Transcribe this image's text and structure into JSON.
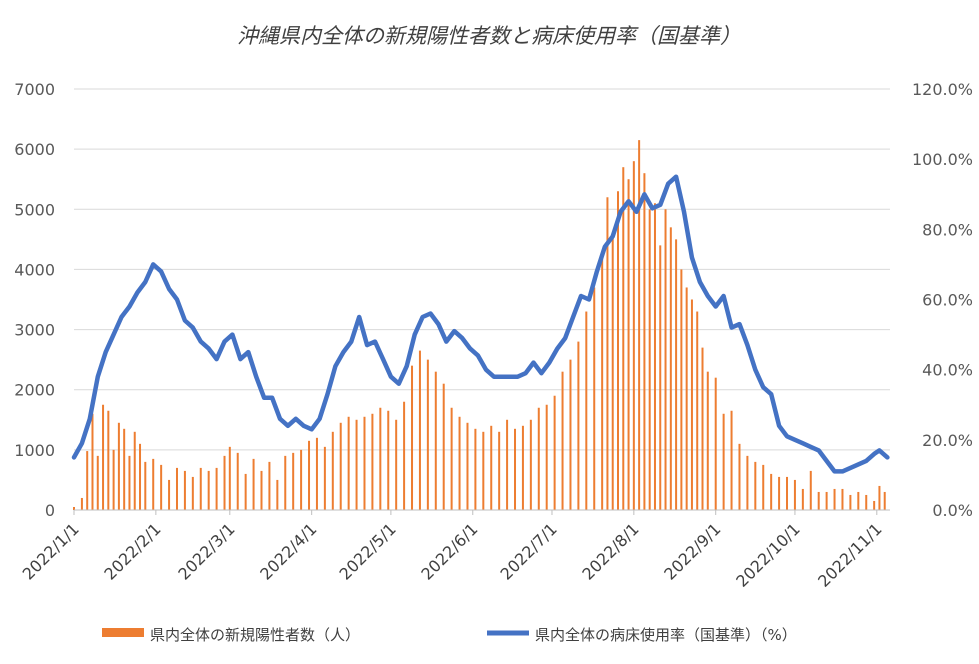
{
  "chart_data": {
    "type": "bar",
    "title": "沖縄県内全体の新規陽性者数と病床使用率（国基準）",
    "x_ticks": [
      "2022/1/1",
      "2022/2/1",
      "2022/3/1",
      "2022/4/1",
      "2022/5/1",
      "2022/6/1",
      "2022/7/1",
      "2022/8/1",
      "2022/9/1",
      "2022/10/1",
      "2022/11/1"
    ],
    "x_range": [
      "2022-01-01",
      "2022-11-06"
    ],
    "y_left_ticks": [
      "0",
      "1000",
      "2000",
      "3000",
      "4000",
      "5000",
      "6000",
      "7000"
    ],
    "y_left_range": [
      0,
      7000
    ],
    "y_right_ticks": [
      "0.0%",
      "20.0%",
      "40.0%",
      "60.0%",
      "80.0%",
      "100.0%",
      "120.0%"
    ],
    "y_right_range": [
      0,
      120
    ],
    "grid": "horizontal",
    "legend_position": "bottom",
    "series": [
      {
        "name": "県内全体の新規陽性者数（人）",
        "type": "bar",
        "axis": "left",
        "color": "#ed7d31",
        "points": [
          [
            "2022-01-01",
            50
          ],
          [
            "2022-01-04",
            200
          ],
          [
            "2022-01-06",
            980
          ],
          [
            "2022-01-08",
            1600
          ],
          [
            "2022-01-10",
            900
          ],
          [
            "2022-01-12",
            1750
          ],
          [
            "2022-01-14",
            1650
          ],
          [
            "2022-01-16",
            1000
          ],
          [
            "2022-01-18",
            1450
          ],
          [
            "2022-01-20",
            1350
          ],
          [
            "2022-01-22",
            900
          ],
          [
            "2022-01-24",
            1300
          ],
          [
            "2022-01-26",
            1100
          ],
          [
            "2022-01-28",
            800
          ],
          [
            "2022-01-31",
            850
          ],
          [
            "2022-02-03",
            750
          ],
          [
            "2022-02-06",
            500
          ],
          [
            "2022-02-09",
            700
          ],
          [
            "2022-02-12",
            650
          ],
          [
            "2022-02-15",
            550
          ],
          [
            "2022-02-18",
            700
          ],
          [
            "2022-02-21",
            650
          ],
          [
            "2022-02-24",
            700
          ],
          [
            "2022-02-27",
            900
          ],
          [
            "2022-03-01",
            1050
          ],
          [
            "2022-03-04",
            950
          ],
          [
            "2022-03-07",
            600
          ],
          [
            "2022-03-10",
            850
          ],
          [
            "2022-03-13",
            650
          ],
          [
            "2022-03-16",
            800
          ],
          [
            "2022-03-19",
            500
          ],
          [
            "2022-03-22",
            900
          ],
          [
            "2022-03-25",
            950
          ],
          [
            "2022-03-28",
            1000
          ],
          [
            "2022-03-31",
            1150
          ],
          [
            "2022-04-03",
            1200
          ],
          [
            "2022-04-06",
            1050
          ],
          [
            "2022-04-09",
            1300
          ],
          [
            "2022-04-12",
            1450
          ],
          [
            "2022-04-15",
            1550
          ],
          [
            "2022-04-18",
            1500
          ],
          [
            "2022-04-21",
            1550
          ],
          [
            "2022-04-24",
            1600
          ],
          [
            "2022-04-27",
            1700
          ],
          [
            "2022-04-30",
            1650
          ],
          [
            "2022-05-03",
            1500
          ],
          [
            "2022-05-06",
            1800
          ],
          [
            "2022-05-09",
            2400
          ],
          [
            "2022-05-12",
            2650
          ],
          [
            "2022-05-15",
            2500
          ],
          [
            "2022-05-18",
            2300
          ],
          [
            "2022-05-21",
            2100
          ],
          [
            "2022-05-24",
            1700
          ],
          [
            "2022-05-27",
            1550
          ],
          [
            "2022-05-30",
            1450
          ],
          [
            "2022-06-02",
            1350
          ],
          [
            "2022-06-05",
            1300
          ],
          [
            "2022-06-08",
            1400
          ],
          [
            "2022-06-11",
            1300
          ],
          [
            "2022-06-14",
            1500
          ],
          [
            "2022-06-17",
            1350
          ],
          [
            "2022-06-20",
            1400
          ],
          [
            "2022-06-23",
            1500
          ],
          [
            "2022-06-26",
            1700
          ],
          [
            "2022-06-29",
            1750
          ],
          [
            "2022-07-02",
            1900
          ],
          [
            "2022-07-05",
            2300
          ],
          [
            "2022-07-08",
            2500
          ],
          [
            "2022-07-11",
            2800
          ],
          [
            "2022-07-14",
            3300
          ],
          [
            "2022-07-17",
            3700
          ],
          [
            "2022-07-20",
            4300
          ],
          [
            "2022-07-22",
            5200
          ],
          [
            "2022-07-24",
            4600
          ],
          [
            "2022-07-26",
            5300
          ],
          [
            "2022-07-28",
            5700
          ],
          [
            "2022-07-30",
            5500
          ],
          [
            "2022-08-01",
            5800
          ],
          [
            "2022-08-03",
            6150
          ],
          [
            "2022-08-05",
            5600
          ],
          [
            "2022-08-07",
            5000
          ],
          [
            "2022-08-09",
            5100
          ],
          [
            "2022-08-11",
            4400
          ],
          [
            "2022-08-13",
            5000
          ],
          [
            "2022-08-15",
            4700
          ],
          [
            "2022-08-17",
            4500
          ],
          [
            "2022-08-19",
            4000
          ],
          [
            "2022-08-21",
            3700
          ],
          [
            "2022-08-23",
            3500
          ],
          [
            "2022-08-25",
            3300
          ],
          [
            "2022-08-27",
            2700
          ],
          [
            "2022-08-29",
            2300
          ],
          [
            "2022-09-01",
            2200
          ],
          [
            "2022-09-04",
            1600
          ],
          [
            "2022-09-07",
            1650
          ],
          [
            "2022-09-10",
            1100
          ],
          [
            "2022-09-13",
            900
          ],
          [
            "2022-09-16",
            800
          ],
          [
            "2022-09-19",
            750
          ],
          [
            "2022-09-22",
            600
          ],
          [
            "2022-09-25",
            550
          ],
          [
            "2022-09-28",
            550
          ],
          [
            "2022-10-01",
            500
          ],
          [
            "2022-10-04",
            350
          ],
          [
            "2022-10-07",
            650
          ],
          [
            "2022-10-10",
            300
          ],
          [
            "2022-10-13",
            300
          ],
          [
            "2022-10-16",
            350
          ],
          [
            "2022-10-19",
            350
          ],
          [
            "2022-10-22",
            250
          ],
          [
            "2022-10-25",
            300
          ],
          [
            "2022-10-28",
            250
          ],
          [
            "2022-10-31",
            150
          ],
          [
            "2022-11-02",
            400
          ],
          [
            "2022-11-04",
            300
          ]
        ]
      },
      {
        "name": "県内全体の病床使用率（国基準）（%）",
        "type": "line",
        "axis": "right",
        "color": "#4472c4",
        "points": [
          [
            "2022-01-01",
            15
          ],
          [
            "2022-01-04",
            19
          ],
          [
            "2022-01-07",
            26
          ],
          [
            "2022-01-10",
            38
          ],
          [
            "2022-01-13",
            45
          ],
          [
            "2022-01-16",
            50
          ],
          [
            "2022-01-19",
            55
          ],
          [
            "2022-01-22",
            58
          ],
          [
            "2022-01-25",
            62
          ],
          [
            "2022-01-28",
            65
          ],
          [
            "2022-01-31",
            70
          ],
          [
            "2022-02-03",
            68
          ],
          [
            "2022-02-06",
            63
          ],
          [
            "2022-02-09",
            60
          ],
          [
            "2022-02-12",
            54
          ],
          [
            "2022-02-15",
            52
          ],
          [
            "2022-02-18",
            48
          ],
          [
            "2022-02-21",
            46
          ],
          [
            "2022-02-24",
            43
          ],
          [
            "2022-02-27",
            48
          ],
          [
            "2022-03-02",
            50
          ],
          [
            "2022-03-05",
            43
          ],
          [
            "2022-03-08",
            45
          ],
          [
            "2022-03-11",
            38
          ],
          [
            "2022-03-14",
            32
          ],
          [
            "2022-03-17",
            32
          ],
          [
            "2022-03-20",
            26
          ],
          [
            "2022-03-23",
            24
          ],
          [
            "2022-03-26",
            26
          ],
          [
            "2022-03-29",
            24
          ],
          [
            "2022-04-01",
            23
          ],
          [
            "2022-04-04",
            26
          ],
          [
            "2022-04-07",
            33
          ],
          [
            "2022-04-10",
            41
          ],
          [
            "2022-04-13",
            45
          ],
          [
            "2022-04-16",
            48
          ],
          [
            "2022-04-19",
            55
          ],
          [
            "2022-04-22",
            47
          ],
          [
            "2022-04-25",
            48
          ],
          [
            "2022-04-28",
            43
          ],
          [
            "2022-05-01",
            38
          ],
          [
            "2022-05-04",
            36
          ],
          [
            "2022-05-07",
            41
          ],
          [
            "2022-05-10",
            50
          ],
          [
            "2022-05-13",
            55
          ],
          [
            "2022-05-16",
            56
          ],
          [
            "2022-05-19",
            53
          ],
          [
            "2022-05-22",
            48
          ],
          [
            "2022-05-25",
            51
          ],
          [
            "2022-05-28",
            49
          ],
          [
            "2022-05-31",
            46
          ],
          [
            "2022-06-03",
            44
          ],
          [
            "2022-06-06",
            40
          ],
          [
            "2022-06-09",
            38
          ],
          [
            "2022-06-12",
            38
          ],
          [
            "2022-06-15",
            38
          ],
          [
            "2022-06-18",
            38
          ],
          [
            "2022-06-21",
            39
          ],
          [
            "2022-06-24",
            42
          ],
          [
            "2022-06-27",
            39
          ],
          [
            "2022-06-30",
            42
          ],
          [
            "2022-07-03",
            46
          ],
          [
            "2022-07-06",
            49
          ],
          [
            "2022-07-09",
            55
          ],
          [
            "2022-07-12",
            61
          ],
          [
            "2022-07-15",
            60
          ],
          [
            "2022-07-18",
            68
          ],
          [
            "2022-07-21",
            75
          ],
          [
            "2022-07-24",
            78
          ],
          [
            "2022-07-27",
            85
          ],
          [
            "2022-07-30",
            88
          ],
          [
            "2022-08-02",
            85
          ],
          [
            "2022-08-05",
            90
          ],
          [
            "2022-08-08",
            86
          ],
          [
            "2022-08-11",
            87
          ],
          [
            "2022-08-14",
            93
          ],
          [
            "2022-08-17",
            95
          ],
          [
            "2022-08-20",
            85
          ],
          [
            "2022-08-23",
            72
          ],
          [
            "2022-08-26",
            65
          ],
          [
            "2022-08-29",
            61
          ],
          [
            "2022-09-01",
            58
          ],
          [
            "2022-09-04",
            61
          ],
          [
            "2022-09-07",
            52
          ],
          [
            "2022-09-10",
            53
          ],
          [
            "2022-09-13",
            47
          ],
          [
            "2022-09-16",
            40
          ],
          [
            "2022-09-19",
            35
          ],
          [
            "2022-09-22",
            33
          ],
          [
            "2022-09-25",
            24
          ],
          [
            "2022-09-28",
            21
          ],
          [
            "2022-10-01",
            20
          ],
          [
            "2022-10-04",
            19
          ],
          [
            "2022-10-07",
            18
          ],
          [
            "2022-10-10",
            17
          ],
          [
            "2022-10-13",
            14
          ],
          [
            "2022-10-16",
            11
          ],
          [
            "2022-10-19",
            11
          ],
          [
            "2022-10-22",
            12
          ],
          [
            "2022-10-25",
            13
          ],
          [
            "2022-10-28",
            14
          ],
          [
            "2022-10-31",
            16
          ],
          [
            "2022-11-02",
            17
          ],
          [
            "2022-11-05",
            15
          ]
        ]
      }
    ]
  }
}
